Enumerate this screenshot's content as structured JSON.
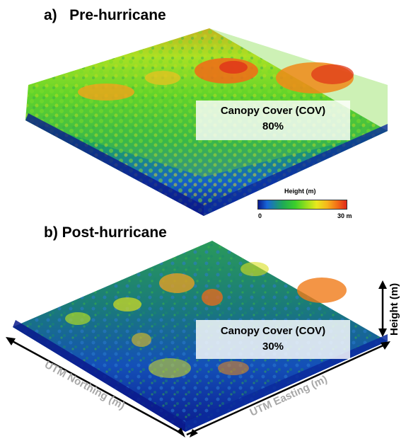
{
  "panel_a": {
    "title": "a)   Pre-hurricane",
    "cov_label": "Canopy Cover (COV)",
    "cov_value": "80%"
  },
  "panel_b": {
    "title": "b) Post-hurricane",
    "cov_label": "Canopy Cover (COV)",
    "cov_value": "30%"
  },
  "legend": {
    "title": "Height (m)",
    "min_label": "0",
    "max_label": "30 m",
    "colors": [
      "#0a1a8c",
      "#1866d8",
      "#1faa55",
      "#3ccf2a",
      "#9be01c",
      "#e8e81e",
      "#f7b51c",
      "#f26a16",
      "#e0281a"
    ]
  },
  "axes": {
    "northing": "UTM Northing (m)",
    "easting": "UTM Easting (m)",
    "height": "Height (m)"
  }
}
